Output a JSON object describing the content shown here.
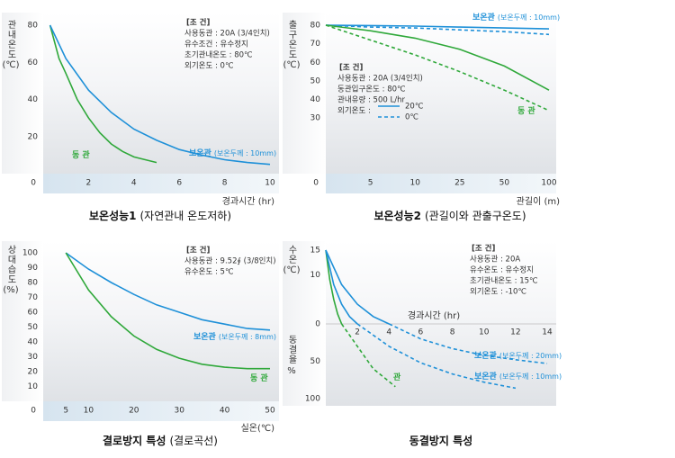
{
  "chart_data": [
    {
      "type": "line",
      "title": "보온성능1",
      "subtitle": "(자연관내 온도저하)",
      "ylabel": "관내온도",
      "yunit": "(℃)",
      "xlabel": "경과시간 (hr)",
      "xlim": [
        0,
        10
      ],
      "ylim": [
        0,
        80
      ],
      "xticks": [
        0,
        2,
        4,
        6,
        8,
        10
      ],
      "yticks": [
        20,
        40,
        60,
        80
      ],
      "conditions": [
        "[조 건]",
        "사용동관 : 20A (3/4인치)",
        "유수조건 : 유수정지",
        "초기관내온도 : 80℃",
        "외기온도 : 0℃"
      ],
      "series": [
        {
          "name": "동 관",
          "color": "#2fa83a",
          "x": [
            0.3,
            0.7,
            1,
            1.5,
            2,
            2.5,
            3,
            3.5,
            4,
            5
          ],
          "values": [
            80,
            62,
            54,
            40,
            30,
            22,
            16,
            12,
            9,
            6
          ]
        },
        {
          "name": "보온관",
          "note": "(보온두께 : 10mm)",
          "color": "#1e90d8",
          "x": [
            0.3,
            1,
            2,
            3,
            4,
            5,
            6,
            7,
            8,
            9,
            10
          ],
          "values": [
            80,
            62,
            45,
            33,
            24,
            18,
            13,
            10,
            7.5,
            6,
            5
          ]
        }
      ]
    },
    {
      "type": "line",
      "title": "보온성능2",
      "subtitle": "(관길이와 관출구온도)",
      "ylabel": "출구온도",
      "yunit": "(℃)",
      "xlabel": "관길이 (m)",
      "x_tick_spacing": "even",
      "xlim": [
        0,
        100
      ],
      "ylim": [
        0,
        80
      ],
      "xticks": [
        0,
        5,
        10,
        25,
        50,
        100
      ],
      "yticks": [
        30,
        40,
        50,
        60,
        70,
        80
      ],
      "conditions": [
        "[조 건]",
        "사용동관 : 20A (3/4인치)",
        "동관입구온도 : 80℃",
        "관내유량 : 500 L/hr",
        "외기온도 :"
      ],
      "legend": [
        {
          "label": "20℃",
          "dash": false,
          "color": "#1e90d8"
        },
        {
          "label": "0℃",
          "dash": true,
          "color": "#1e90d8"
        }
      ],
      "series": [
        {
          "name": "보온관",
          "note": "(보온두께 : 10mm)",
          "color": "#1e90d8",
          "dash": false,
          "x": [
            0,
            5,
            10,
            25,
            50,
            100
          ],
          "values": [
            80,
            79.8,
            79.5,
            79,
            78.5,
            78
          ]
        },
        {
          "color": "#1e90d8",
          "dash": true,
          "x": [
            0,
            5,
            10,
            25,
            50,
            100
          ],
          "values": [
            80,
            79,
            78.5,
            77.5,
            76.5,
            75
          ]
        },
        {
          "name": "동 관",
          "color": "#2fa83a",
          "dash": false,
          "x": [
            0,
            5,
            10,
            25,
            50,
            100
          ],
          "values": [
            80,
            77,
            73,
            67,
            58,
            45
          ]
        },
        {
          "color": "#2fa83a",
          "dash": true,
          "x": [
            0,
            5,
            10,
            25,
            50,
            100
          ],
          "values": [
            80,
            72,
            64,
            55,
            45,
            34
          ]
        }
      ]
    },
    {
      "type": "line",
      "title": "결로방지 특성",
      "subtitle": "(결로곡선)",
      "ylabel": "상대습도",
      "yunit": "(%)",
      "xlabel": "실온(℃)",
      "xlim": [
        0,
        50
      ],
      "ylim": [
        0,
        100
      ],
      "xticks": [
        0,
        5,
        10,
        20,
        30,
        40,
        50
      ],
      "yticks": [
        10,
        20,
        30,
        40,
        50,
        60,
        70,
        80,
        90,
        100
      ],
      "conditions": [
        "[조 건]",
        "사용동관 : 9.52∮ (3/8인치)",
        "유수온도 : 5℃"
      ],
      "series": [
        {
          "name": "보온관",
          "note": "(보온두께 : 8mm)",
          "color": "#1e90d8",
          "x": [
            5,
            10,
            15,
            20,
            25,
            30,
            35,
            40,
            45,
            50
          ],
          "values": [
            100,
            89,
            80,
            72,
            65,
            60,
            55,
            52,
            49,
            48
          ]
        },
        {
          "name": "동 관",
          "color": "#2fa83a",
          "x": [
            5,
            10,
            15,
            20,
            25,
            30,
            35,
            40,
            45,
            50
          ],
          "values": [
            100,
            75,
            57,
            44,
            35,
            29,
            25,
            23,
            22,
            22
          ]
        }
      ]
    },
    {
      "type": "line",
      "title": "동결방지 특성",
      "ylabel": "수온",
      "yunit": "(℃)",
      "y2label": "동결율",
      "y2unit": "%",
      "xlabel": "경과시간 (hr)",
      "xlim": [
        0,
        14
      ],
      "ylim": [
        0,
        15
      ],
      "y2lim": [
        0,
        100
      ],
      "xticks": [
        2,
        4,
        6,
        8,
        10,
        12,
        14
      ],
      "yticks": [
        0,
        10,
        15
      ],
      "y2ticks": [
        50,
        100
      ],
      "conditions": [
        "[조 건]",
        "사용동관 : 20A",
        "유수온도 : 유수정지",
        "초기관내온도 : 15℃",
        "외기온도 : -10℃"
      ],
      "series": [
        {
          "color": "#2fa83a",
          "x": [
            0,
            0.25,
            0.5,
            0.75,
            1
          ],
          "values": [
            15,
            9,
            5,
            2,
            0
          ]
        },
        {
          "color": "#1e90d8",
          "x": [
            0,
            0.5,
            1,
            1.5,
            2
          ],
          "values": [
            15,
            8,
            4,
            1.5,
            0
          ]
        },
        {
          "color": "#1e90d8",
          "x": [
            0,
            1,
            2,
            3,
            4
          ],
          "values": [
            15,
            8,
            4,
            1.5,
            0
          ]
        },
        {
          "name": "보온관",
          "note": "(보온두께 : 20mm)",
          "color": "#1e90d8",
          "dash": true,
          "axis": "y2",
          "x": [
            4,
            6,
            8,
            10,
            12,
            14
          ],
          "values": [
            0,
            20,
            33,
            42,
            48,
            53
          ]
        },
        {
          "name": "보온관",
          "note": "(보온두께 : 10mm)",
          "color": "#1e90d8",
          "dash": true,
          "axis": "y2",
          "x": [
            2,
            4,
            6,
            8,
            10,
            12
          ],
          "values": [
            0,
            30,
            52,
            67,
            78,
            86
          ]
        },
        {
          "name": "관",
          "color": "#2fa83a",
          "dash": true,
          "axis": "y2",
          "x": [
            1,
            2,
            3,
            4.4
          ],
          "values": [
            0,
            30,
            60,
            84
          ]
        }
      ]
    }
  ]
}
